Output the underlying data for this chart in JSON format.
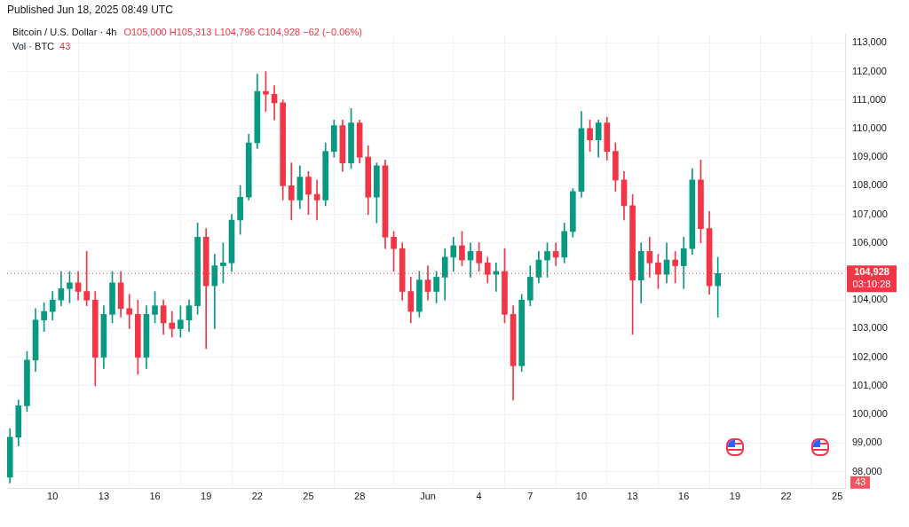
{
  "chart_data": {
    "type": "candlestick",
    "title": "Bitcoin / U.S. Dollar · 4h",
    "annotations": [
      "Published Jun 18, 2025 08:49 UTC",
      "O105,000 H105,313 L104,796 C104,928 −62 (−0.06%)",
      "Vol · BTC",
      "43",
      "03:10:28",
      "43"
    ],
    "x": [
      "2025-05-07T12:00",
      "2025-05-08",
      "2025-05-08T12:00",
      "2025-05-09",
      "2025-05-09T12:00",
      "2025-05-10",
      "2025-05-10T12:00",
      "2025-05-11",
      "2025-05-11T12:00",
      "2025-05-12",
      "2025-05-12T12:00",
      "2025-05-13",
      "2025-05-13T12:00",
      "2025-05-14",
      "2025-05-14T12:00",
      "2025-05-15",
      "2025-05-15T12:00",
      "2025-05-16",
      "2025-05-16T12:00",
      "2025-05-17",
      "2025-05-17T12:00",
      "2025-05-18",
      "2025-05-18T12:00",
      "2025-05-19",
      "2025-05-19T12:00",
      "2025-05-20",
      "2025-05-20T12:00",
      "2025-05-21",
      "2025-05-21T12:00",
      "2025-05-22",
      "2025-05-22T12:00",
      "2025-05-23",
      "2025-05-23T12:00",
      "2025-05-24",
      "2025-05-24T12:00",
      "2025-05-25",
      "2025-05-25T12:00",
      "2025-05-26",
      "2025-05-26T12:00",
      "2025-05-27",
      "2025-05-27T12:00",
      "2025-05-28",
      "2025-05-28T12:00",
      "2025-05-29",
      "2025-05-29T12:00",
      "2025-05-30",
      "2025-05-30T12:00",
      "2025-05-31",
      "2025-05-31T12:00",
      "2025-06-01",
      "2025-06-01T12:00",
      "2025-06-02",
      "2025-06-02T12:00",
      "2025-06-03",
      "2025-06-03T12:00",
      "2025-06-04",
      "2025-06-04T12:00",
      "2025-06-05",
      "2025-06-05T12:00",
      "2025-06-06",
      "2025-06-06T12:00",
      "2025-06-07",
      "2025-06-07T12:00",
      "2025-06-08",
      "2025-06-08T12:00",
      "2025-06-09",
      "2025-06-09T12:00",
      "2025-06-10",
      "2025-06-10T12:00",
      "2025-06-11",
      "2025-06-11T12:00",
      "2025-06-12",
      "2025-06-12T12:00",
      "2025-06-13",
      "2025-06-13T12:00",
      "2025-06-14",
      "2025-06-14T12:00",
      "2025-06-15",
      "2025-06-15T12:00",
      "2025-06-16",
      "2025-06-16T12:00",
      "2025-06-17",
      "2025-06-17T12:00",
      "2025-06-18"
    ],
    "series": [
      {
        "ohlc": [
          [
            97800,
            99500,
            97600,
            99200
          ],
          [
            99200,
            100500,
            98900,
            100300
          ],
          [
            100300,
            102200,
            100100,
            101900
          ],
          [
            101900,
            103700,
            101500,
            103300
          ],
          [
            103300,
            103900,
            102900,
            103600
          ],
          [
            103600,
            104300,
            103300,
            104000
          ],
          [
            104000,
            105000,
            103800,
            104400
          ],
          [
            104400,
            105000,
            103900,
            104600
          ],
          [
            104600,
            105000,
            104000,
            104300
          ],
          [
            104300,
            105700,
            103800,
            104000
          ],
          [
            104000,
            104300,
            101000,
            102000
          ],
          [
            102000,
            103800,
            101600,
            103500
          ],
          [
            103500,
            105000,
            103200,
            104600
          ],
          [
            104600,
            105000,
            103400,
            103700
          ],
          [
            103700,
            104200,
            103000,
            103500
          ],
          [
            103500,
            104000,
            101400,
            102000
          ],
          [
            102000,
            103800,
            101600,
            103500
          ],
          [
            103500,
            104300,
            103200,
            103800
          ],
          [
            103800,
            104000,
            102800,
            103200
          ],
          [
            103200,
            103600,
            102700,
            103000
          ],
          [
            103000,
            103800,
            102700,
            103300
          ],
          [
            103300,
            104000,
            102900,
            103800
          ],
          [
            103800,
            106700,
            103500,
            106200
          ],
          [
            106200,
            106500,
            102300,
            104500
          ],
          [
            104500,
            105600,
            103000,
            105200
          ],
          [
            105200,
            106000,
            104600,
            105300
          ],
          [
            105300,
            107000,
            105000,
            106800
          ],
          [
            106800,
            108000,
            106300,
            107600
          ],
          [
            107600,
            109800,
            107500,
            109500
          ],
          [
            109500,
            111900,
            109300,
            111300
          ],
          [
            111300,
            112000,
            110600,
            111200
          ],
          [
            111200,
            111500,
            110300,
            110900
          ],
          [
            110900,
            111000,
            107500,
            108000
          ],
          [
            108000,
            108800,
            106800,
            107500
          ],
          [
            107500,
            108700,
            107200,
            108300
          ],
          [
            108300,
            108500,
            107000,
            107700
          ],
          [
            107700,
            108200,
            106800,
            107500
          ],
          [
            107500,
            109500,
            107300,
            109200
          ],
          [
            109200,
            110300,
            109000,
            110100
          ],
          [
            110100,
            110300,
            108500,
            108800
          ],
          [
            108800,
            110700,
            108600,
            110200
          ],
          [
            110200,
            110300,
            108800,
            109000
          ],
          [
            109000,
            109400,
            107000,
            107600
          ],
          [
            107600,
            108800,
            106700,
            108700
          ],
          [
            108700,
            108900,
            105800,
            106200
          ],
          [
            106200,
            106400,
            105000,
            105800
          ],
          [
            105800,
            106000,
            104000,
            104300
          ],
          [
            104300,
            104800,
            103200,
            103600
          ],
          [
            103600,
            105000,
            103400,
            104700
          ],
          [
            104700,
            105200,
            104000,
            104300
          ],
          [
            104300,
            105000,
            103900,
            104800
          ],
          [
            104800,
            105800,
            104000,
            105500
          ],
          [
            105500,
            106200,
            105000,
            105900
          ],
          [
            105900,
            106400,
            105200,
            105400
          ],
          [
            105400,
            106000,
            104800,
            105700
          ],
          [
            105700,
            106000,
            105000,
            105300
          ],
          [
            105300,
            105500,
            104600,
            104900
          ],
          [
            104900,
            105300,
            104300,
            105000
          ],
          [
            105000,
            105800,
            103200,
            103500
          ],
          [
            103500,
            103800,
            100500,
            101700
          ],
          [
            101700,
            104200,
            101500,
            104000
          ],
          [
            104000,
            105200,
            103800,
            104800
          ],
          [
            104800,
            105700,
            104600,
            105400
          ],
          [
            105400,
            106000,
            104800,
            105700
          ],
          [
            105700,
            106000,
            105200,
            105500
          ],
          [
            105500,
            106700,
            105300,
            106400
          ],
          [
            106400,
            107900,
            106200,
            107800
          ],
          [
            107800,
            110600,
            107600,
            110000
          ],
          [
            110000,
            110300,
            109200,
            109600
          ],
          [
            109600,
            110300,
            109000,
            110200
          ],
          [
            110200,
            110400,
            108900,
            109200
          ],
          [
            109200,
            109500,
            107800,
            108200
          ],
          [
            108200,
            108500,
            106800,
            107300
          ],
          [
            107300,
            107700,
            102800,
            104700
          ],
          [
            104700,
            106000,
            103900,
            105700
          ],
          [
            105700,
            106200,
            104800,
            105300
          ],
          [
            105300,
            105600,
            104400,
            104900
          ],
          [
            104900,
            106000,
            104600,
            105400
          ],
          [
            105400,
            105700,
            104600,
            105200
          ],
          [
            105200,
            106200,
            104400,
            105800
          ],
          [
            105800,
            108600,
            105600,
            108200
          ],
          [
            108200,
            108900,
            106000,
            106500
          ],
          [
            106500,
            107100,
            104200,
            104500
          ],
          [
            104500,
            105500,
            103400,
            104928
          ]
        ],
        "colors": [
          "#089981",
          "#089981",
          "#089981",
          "#089981",
          "#089981",
          "#089981",
          "#089981",
          "#089981",
          "#f23645",
          "#f23645",
          "#f23645",
          "#089981",
          "#089981",
          "#f23645",
          "#f23645",
          "#f23645",
          "#089981",
          "#089981",
          "#f23645",
          "#f23645",
          "#089981",
          "#089981",
          "#089981",
          "#f23645",
          "#089981",
          "#089981",
          "#089981",
          "#089981",
          "#089981",
          "#089981",
          "#f23645",
          "#f23645",
          "#f23645",
          "#f23645",
          "#089981",
          "#f23645",
          "#f23645",
          "#089981",
          "#089981",
          "#f23645",
          "#089981",
          "#f23645",
          "#f23645",
          "#089981",
          "#f23645",
          "#f23645",
          "#f23645",
          "#f23645",
          "#089981",
          "#f23645",
          "#089981",
          "#089981",
          "#089981",
          "#f23645",
          "#089981",
          "#f23645",
          "#f23645",
          "#089981",
          "#f23645",
          "#f23645",
          "#089981",
          "#089981",
          "#089981",
          "#089981",
          "#f23645",
          "#089981",
          "#089981",
          "#089981",
          "#f23645",
          "#089981",
          "#f23645",
          "#f23645",
          "#f23645",
          "#f23645",
          "#089981",
          "#f23645",
          "#f23645",
          "#089981",
          "#f23645",
          "#089981",
          "#089981",
          "#f23645",
          "#f23645",
          "#089981"
        ]
      }
    ],
    "xlim": [
      "2025-05-07T08:00",
      "2025-06-25T11:00"
    ],
    "xticks": [
      {
        "value": "2025-05-10",
        "label": "10"
      },
      {
        "value": "2025-05-13",
        "label": "13"
      },
      {
        "value": "2025-05-16",
        "label": "16"
      },
      {
        "value": "2025-05-19",
        "label": "19"
      },
      {
        "value": "2025-05-22",
        "label": "22"
      },
      {
        "value": "2025-05-25",
        "label": "25"
      },
      {
        "value": "2025-05-28",
        "label": "28"
      },
      {
        "value": "2025-06-01",
        "label": "Jun"
      },
      {
        "value": "2025-06-04",
        "label": "4"
      },
      {
        "value": "2025-06-07",
        "label": "7"
      },
      {
        "value": "2025-06-10",
        "label": "10"
      },
      {
        "value": "2025-06-13",
        "label": "13"
      },
      {
        "value": "2025-06-16",
        "label": "16"
      },
      {
        "value": "2025-06-19",
        "label": "19"
      },
      {
        "value": "2025-06-22",
        "label": "22"
      },
      {
        "value": "2025-06-25",
        "label": "25"
      }
    ],
    "ylim": [
      97400,
      113300
    ],
    "yticks": [
      {
        "value": 98000,
        "label": "98,000"
      },
      {
        "value": 99000,
        "label": "99,000"
      },
      {
        "value": 100000,
        "label": "100,000"
      },
      {
        "value": 101000,
        "label": "101,000"
      },
      {
        "value": 102000,
        "label": "102,000"
      },
      {
        "value": 103000,
        "label": "103,000"
      },
      {
        "value": 104000,
        "label": "104,000"
      },
      {
        "value": 105000,
        "label": null
      },
      {
        "value": 106000,
        "label": "106,000"
      },
      {
        "value": 107000,
        "label": "107,000"
      },
      {
        "value": 108000,
        "label": "108,000"
      },
      {
        "value": 109000,
        "label": "109,000"
      },
      {
        "value": 110000,
        "label": "110,000"
      },
      {
        "value": 111000,
        "label": "111,000"
      },
      {
        "value": 112000,
        "label": "112,000"
      },
      {
        "value": 113000,
        "label": "113,000"
      }
    ],
    "ref_lines": [
      {
        "axis": "y",
        "value": 104928,
        "label": "104,928",
        "color": "#f23645",
        "line_style": "dotted"
      }
    ],
    "grid": true,
    "legend": false
  }
}
